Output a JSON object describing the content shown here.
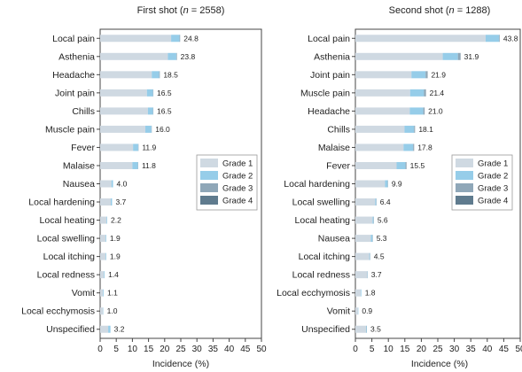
{
  "colors": {
    "grade1": "#cfd9e2",
    "grade2": "#96cde9",
    "grade3": "#8fa7b8",
    "grade4": "#5f7b8e",
    "frame": "#444444"
  },
  "chart_data": [
    {
      "type": "bar",
      "orientation": "horizontal",
      "stacked": true,
      "title": "First shot (n = 2558)",
      "xlabel": "Incidence (%)",
      "xlim": [
        0,
        50
      ],
      "xticks": [
        0,
        5,
        10,
        15,
        20,
        25,
        30,
        35,
        40,
        45,
        50
      ],
      "legend": [
        "Grade 1",
        "Grade 2",
        "Grade 3",
        "Grade 4"
      ],
      "legend_position": "center-right",
      "categories": [
        "Local pain",
        "Asthenia",
        "Headache",
        "Joint pain",
        "Chills",
        "Muscle pain",
        "Fever",
        "Malaise",
        "Nausea",
        "Local hardening",
        "Local heating",
        "Local swelling",
        "Local itching",
        "Local redness",
        "Vomit",
        "Local ecchymosis",
        "Unspecified"
      ],
      "totals": [
        "24.8",
        "23.8",
        "18.5",
        "16.5",
        "16.5",
        "16.0",
        "11.9",
        "11.8",
        "4.0",
        "3.7",
        "2.2",
        "1.9",
        "1.9",
        "1.4",
        "1.1",
        "1.0",
        "3.2"
      ],
      "series": [
        {
          "name": "Grade 1",
          "values": [
            22.0,
            21.0,
            16.0,
            14.5,
            14.8,
            14.0,
            10.2,
            10.0,
            3.5,
            3.3,
            2.0,
            1.7,
            1.7,
            1.2,
            0.9,
            0.9,
            2.5
          ]
        },
        {
          "name": "Grade 2",
          "values": [
            2.6,
            2.6,
            2.3,
            1.9,
            1.6,
            1.9,
            1.6,
            1.7,
            0.5,
            0.4,
            0.2,
            0.2,
            0.2,
            0.2,
            0.2,
            0.1,
            0.7
          ]
        },
        {
          "name": "Grade 3",
          "values": [
            0.2,
            0.2,
            0.2,
            0.1,
            0.1,
            0.1,
            0.1,
            0.1,
            0,
            0,
            0,
            0,
            0,
            0,
            0,
            0,
            0
          ]
        },
        {
          "name": "Grade 4",
          "values": [
            0,
            0,
            0,
            0,
            0,
            0,
            0,
            0,
            0,
            0,
            0,
            0,
            0,
            0,
            0,
            0,
            0
          ]
        }
      ]
    },
    {
      "type": "bar",
      "orientation": "horizontal",
      "stacked": true,
      "title": "Second shot (n = 1288)",
      "xlabel": "Incidence (%)",
      "xlim": [
        0,
        50
      ],
      "xticks": [
        0,
        5,
        10,
        15,
        20,
        25,
        30,
        35,
        40,
        45,
        50
      ],
      "legend": [
        "Grade 1",
        "Grade 2",
        "Grade 3",
        "Grade 4"
      ],
      "legend_position": "center-right",
      "categories": [
        "Local pain",
        "Asthenia",
        "Joint pain",
        "Muscle pain",
        "Headache",
        "Chills",
        "Malaise",
        "Fever",
        "Local hardening",
        "Local swelling",
        "Local heating",
        "Nausea",
        "Local itching",
        "Local redness",
        "Local ecchymosis",
        "Vomit",
        "Unspecified"
      ],
      "totals": [
        "43.8",
        "31.9",
        "21.9",
        "21.4",
        "21.0",
        "18.1",
        "17.8",
        "15.5",
        "9.9",
        "6.4",
        "5.6",
        "5.3",
        "4.5",
        "3.7",
        "1.8",
        "0.9",
        "3.5"
      ],
      "series": [
        {
          "name": "Grade 1",
          "values": [
            39.5,
            26.5,
            17.0,
            16.6,
            16.5,
            14.9,
            14.6,
            12.5,
            9.0,
            6.0,
            5.2,
            4.7,
            4.2,
            3.5,
            1.6,
            0.8,
            3.2
          ]
        },
        {
          "name": "Grade 2",
          "values": [
            4.1,
            4.6,
            4.3,
            4.2,
            4.1,
            2.9,
            2.9,
            2.7,
            0.8,
            0.3,
            0.3,
            0.5,
            0.2,
            0.1,
            0.2,
            0.1,
            0.2
          ]
        },
        {
          "name": "Grade 3",
          "values": [
            0.2,
            0.7,
            0.5,
            0.5,
            0.3,
            0.3,
            0.2,
            0.2,
            0.1,
            0.1,
            0.1,
            0.1,
            0.1,
            0.1,
            0,
            0,
            0.1
          ]
        },
        {
          "name": "Grade 4",
          "values": [
            0,
            0.1,
            0.1,
            0.1,
            0.1,
            0,
            0.1,
            0.1,
            0,
            0,
            0,
            0,
            0,
            0,
            0,
            0,
            0
          ]
        }
      ]
    }
  ]
}
